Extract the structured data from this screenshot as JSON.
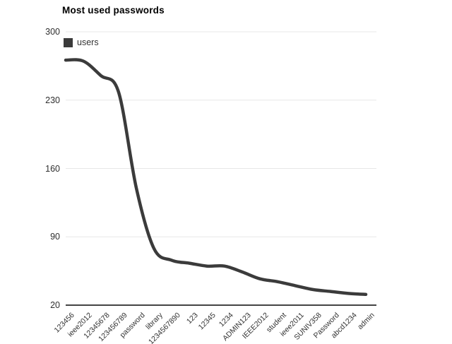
{
  "page": {
    "background": "#ffffff"
  },
  "header": {
    "title": "Most used passwords"
  },
  "legend": {
    "label": "users",
    "swatch_color": "#3b3b3b"
  },
  "chart_data": {
    "type": "line",
    "title": "Most used passwords",
    "series": [
      {
        "name": "users",
        "values": [
          271,
          270,
          255,
          238,
          140,
          78,
          66,
          63,
          60,
          60,
          54,
          47,
          44,
          40,
          36,
          34,
          32,
          31
        ]
      }
    ],
    "categories": [
      "123456",
      "ieee2012",
      "12345678",
      "123456789",
      "password",
      "library",
      "1234567890",
      "123",
      "12345",
      "1234",
      "ADMIN123",
      "IEEE2012",
      "student",
      "ieee2011",
      "SUNIV358",
      "Password",
      "abcd1234",
      "admin"
    ],
    "xlabel": "",
    "ylabel": "",
    "ylim": [
      20,
      300
    ],
    "y_ticks": [
      300,
      230,
      160,
      90,
      20
    ],
    "grid": true,
    "smooth": true,
    "legend_position": "top-left",
    "colors": {
      "line": "#3b3b3b",
      "grid": "#e7e7e7",
      "axis_baseline": "#444444",
      "tick_label": "#2e2e2e",
      "category_label": "#333333"
    }
  }
}
